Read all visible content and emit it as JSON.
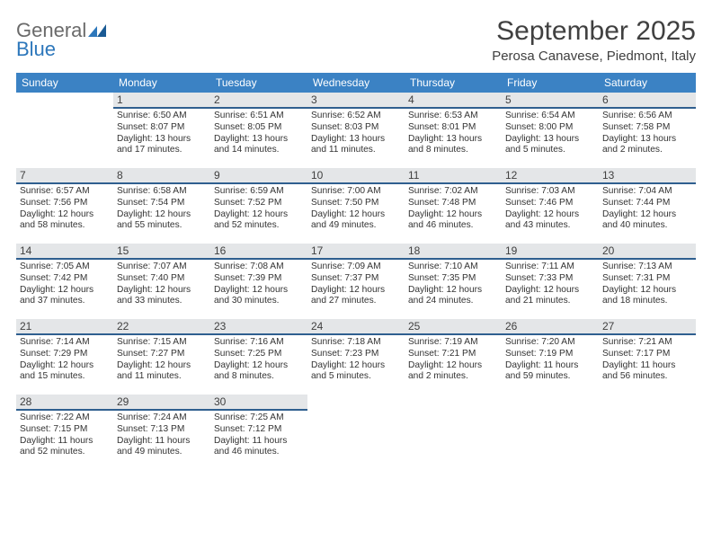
{
  "logo": {
    "text1": "General",
    "text2": "Blue"
  },
  "title": "September 2025",
  "location": "Perosa Canavese, Piedmont, Italy",
  "colors": {
    "header_bg": "#3b82c4",
    "header_text": "#ffffff",
    "daybar_bg": "#e4e6e8",
    "daybar_border": "#2f5f8f",
    "logo_gray": "#6a6a6a",
    "logo_blue": "#2d77bb"
  },
  "weekdays": [
    "Sunday",
    "Monday",
    "Tuesday",
    "Wednesday",
    "Thursday",
    "Friday",
    "Saturday"
  ],
  "weeks": [
    [
      null,
      {
        "n": "1",
        "sr": "6:50 AM",
        "ss": "8:07 PM",
        "dl": "13 hours and 17 minutes."
      },
      {
        "n": "2",
        "sr": "6:51 AM",
        "ss": "8:05 PM",
        "dl": "13 hours and 14 minutes."
      },
      {
        "n": "3",
        "sr": "6:52 AM",
        "ss": "8:03 PM",
        "dl": "13 hours and 11 minutes."
      },
      {
        "n": "4",
        "sr": "6:53 AM",
        "ss": "8:01 PM",
        "dl": "13 hours and 8 minutes."
      },
      {
        "n": "5",
        "sr": "6:54 AM",
        "ss": "8:00 PM",
        "dl": "13 hours and 5 minutes."
      },
      {
        "n": "6",
        "sr": "6:56 AM",
        "ss": "7:58 PM",
        "dl": "13 hours and 2 minutes."
      }
    ],
    [
      {
        "n": "7",
        "sr": "6:57 AM",
        "ss": "7:56 PM",
        "dl": "12 hours and 58 minutes."
      },
      {
        "n": "8",
        "sr": "6:58 AM",
        "ss": "7:54 PM",
        "dl": "12 hours and 55 minutes."
      },
      {
        "n": "9",
        "sr": "6:59 AM",
        "ss": "7:52 PM",
        "dl": "12 hours and 52 minutes."
      },
      {
        "n": "10",
        "sr": "7:00 AM",
        "ss": "7:50 PM",
        "dl": "12 hours and 49 minutes."
      },
      {
        "n": "11",
        "sr": "7:02 AM",
        "ss": "7:48 PM",
        "dl": "12 hours and 46 minutes."
      },
      {
        "n": "12",
        "sr": "7:03 AM",
        "ss": "7:46 PM",
        "dl": "12 hours and 43 minutes."
      },
      {
        "n": "13",
        "sr": "7:04 AM",
        "ss": "7:44 PM",
        "dl": "12 hours and 40 minutes."
      }
    ],
    [
      {
        "n": "14",
        "sr": "7:05 AM",
        "ss": "7:42 PM",
        "dl": "12 hours and 37 minutes."
      },
      {
        "n": "15",
        "sr": "7:07 AM",
        "ss": "7:40 PM",
        "dl": "12 hours and 33 minutes."
      },
      {
        "n": "16",
        "sr": "7:08 AM",
        "ss": "7:39 PM",
        "dl": "12 hours and 30 minutes."
      },
      {
        "n": "17",
        "sr": "7:09 AM",
        "ss": "7:37 PM",
        "dl": "12 hours and 27 minutes."
      },
      {
        "n": "18",
        "sr": "7:10 AM",
        "ss": "7:35 PM",
        "dl": "12 hours and 24 minutes."
      },
      {
        "n": "19",
        "sr": "7:11 AM",
        "ss": "7:33 PM",
        "dl": "12 hours and 21 minutes."
      },
      {
        "n": "20",
        "sr": "7:13 AM",
        "ss": "7:31 PM",
        "dl": "12 hours and 18 minutes."
      }
    ],
    [
      {
        "n": "21",
        "sr": "7:14 AM",
        "ss": "7:29 PM",
        "dl": "12 hours and 15 minutes."
      },
      {
        "n": "22",
        "sr": "7:15 AM",
        "ss": "7:27 PM",
        "dl": "12 hours and 11 minutes."
      },
      {
        "n": "23",
        "sr": "7:16 AM",
        "ss": "7:25 PM",
        "dl": "12 hours and 8 minutes."
      },
      {
        "n": "24",
        "sr": "7:18 AM",
        "ss": "7:23 PM",
        "dl": "12 hours and 5 minutes."
      },
      {
        "n": "25",
        "sr": "7:19 AM",
        "ss": "7:21 PM",
        "dl": "12 hours and 2 minutes."
      },
      {
        "n": "26",
        "sr": "7:20 AM",
        "ss": "7:19 PM",
        "dl": "11 hours and 59 minutes."
      },
      {
        "n": "27",
        "sr": "7:21 AM",
        "ss": "7:17 PM",
        "dl": "11 hours and 56 minutes."
      }
    ],
    [
      {
        "n": "28",
        "sr": "7:22 AM",
        "ss": "7:15 PM",
        "dl": "11 hours and 52 minutes."
      },
      {
        "n": "29",
        "sr": "7:24 AM",
        "ss": "7:13 PM",
        "dl": "11 hours and 49 minutes."
      },
      {
        "n": "30",
        "sr": "7:25 AM",
        "ss": "7:12 PM",
        "dl": "11 hours and 46 minutes."
      },
      null,
      null,
      null,
      null
    ]
  ],
  "labels": {
    "sunrise": "Sunrise:",
    "sunset": "Sunset:",
    "daylight": "Daylight:"
  }
}
